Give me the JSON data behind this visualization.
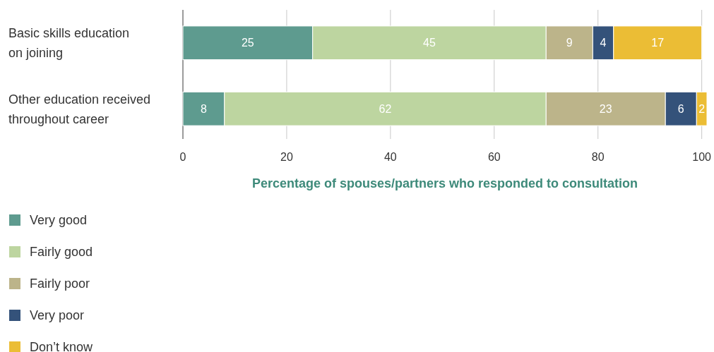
{
  "chart_data": {
    "type": "bar",
    "orientation": "horizontal",
    "stacked": true,
    "categories": [
      "Basic skills education\non joining",
      "Other education received\nthroughout career"
    ],
    "series": [
      {
        "name": "Very good",
        "color": "#5e9b8f",
        "values": [
          25,
          8
        ]
      },
      {
        "name": "Fairly good",
        "color": "#bdd5a0",
        "values": [
          45,
          62
        ]
      },
      {
        "name": "Fairly poor",
        "color": "#bcb48a",
        "values": [
          9,
          23
        ]
      },
      {
        "name": "Very poor",
        "color": "#34527a",
        "values": [
          4,
          6
        ]
      },
      {
        "name": "Don’t know",
        "color": "#ebbd35",
        "values": [
          17,
          2
        ]
      }
    ],
    "xlim": [
      0,
      101
    ],
    "xticks": [
      0,
      20,
      40,
      60,
      80,
      100
    ],
    "xlabel": "Percentage of spouses/partners who responded to consultation",
    "grid": "x",
    "legend": "bottom",
    "data_labels": true
  }
}
